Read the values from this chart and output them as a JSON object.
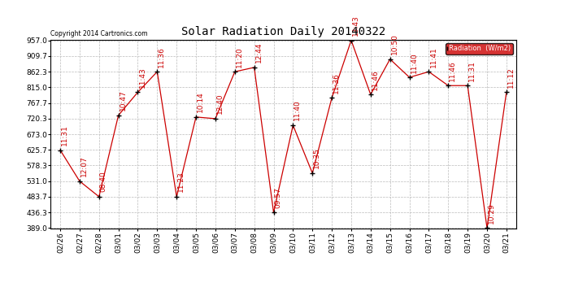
{
  "title": "Solar Radiation Daily 20140322",
  "copyright": "Copyright 2014 Cartronics.com",
  "legend_label": "Radiation  (W/m2)",
  "x_labels": [
    "02/26",
    "02/27",
    "02/28",
    "03/01",
    "03/02",
    "03/03",
    "03/04",
    "03/05",
    "03/06",
    "03/07",
    "03/08",
    "03/09",
    "03/10",
    "03/11",
    "03/12",
    "03/13",
    "03/14",
    "03/15",
    "03/16",
    "03/17",
    "03/18",
    "03/19",
    "03/20",
    "03/21"
  ],
  "y_values": [
    625,
    531,
    484,
    730,
    800,
    862,
    484,
    725,
    720,
    862,
    875,
    436,
    700,
    555,
    783,
    957,
    793,
    900,
    845,
    862,
    820,
    820,
    389,
    800
  ],
  "point_labels": [
    "11:31",
    "12:07",
    "08:40",
    "10:47",
    "11:43",
    "11:36",
    "11:23",
    "10:14",
    "12:40",
    "11:20",
    "12:44",
    "09:57",
    "11:40",
    "10:35",
    "11:36",
    "13:43",
    "11:46",
    "10:50",
    "11:40",
    "11:41",
    "11:46",
    "11:31",
    "10:29",
    "11:12"
  ],
  "ylim_min": 389.0,
  "ylim_max": 957.0,
  "yticks": [
    389.0,
    436.3,
    483.7,
    531.0,
    578.3,
    625.7,
    673.0,
    720.3,
    767.7,
    815.0,
    862.3,
    909.7,
    957.0
  ],
  "background_color": "#ffffff",
  "line_color": "#cc0000",
  "marker_color": "#000000",
  "grid_color": "#bbbbbb",
  "title_fontsize": 10,
  "label_fontsize": 6.5,
  "annotation_fontsize": 6.5
}
